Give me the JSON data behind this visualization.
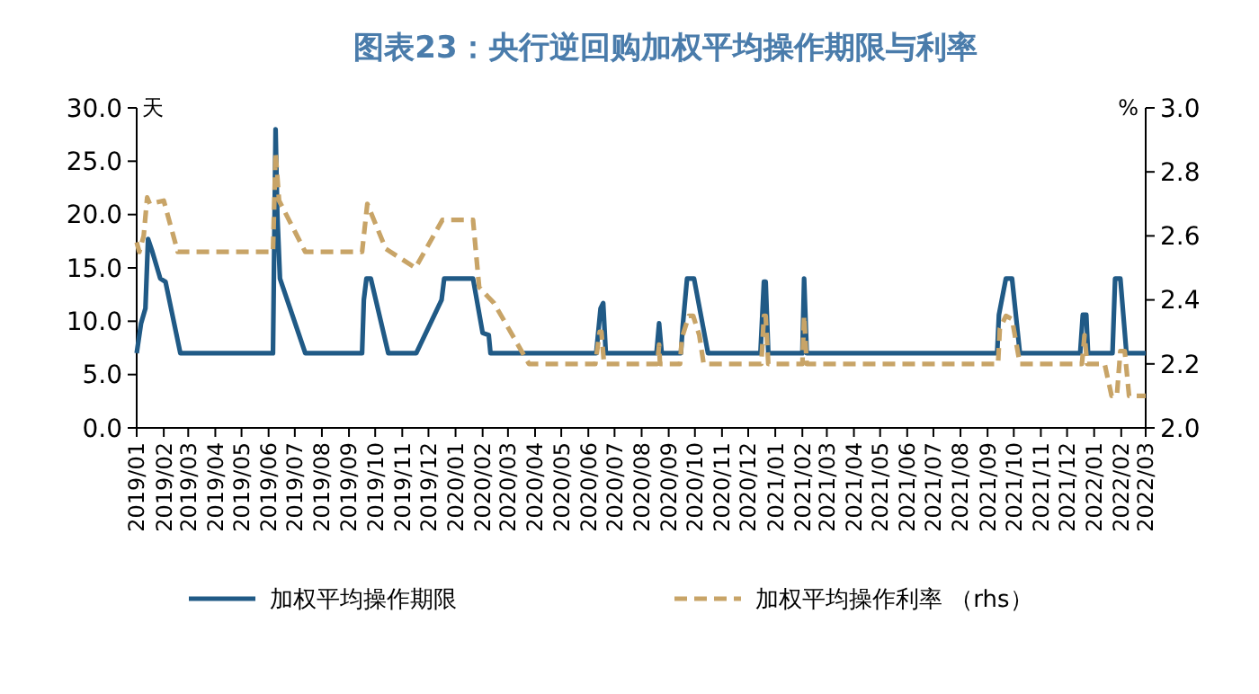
{
  "chart_data": {
    "type": "line",
    "title": "图表23：央行逆回购加权平均操作期限与利率",
    "ylabel": "天",
    "y2label": "%",
    "xlim": [
      "2019-01-01",
      "2022-03-01"
    ],
    "xticks": [
      {
        "value": "2019-01",
        "label": "2019/01"
      },
      {
        "value": "2019-02",
        "label": "2019/02"
      },
      {
        "value": "2019-03",
        "label": "2019/03"
      },
      {
        "value": "2019-04",
        "label": "2019/04"
      },
      {
        "value": "2019-05",
        "label": "2019/05"
      },
      {
        "value": "2019-06",
        "label": "2019/06"
      },
      {
        "value": "2019-07",
        "label": "2019/07"
      },
      {
        "value": "2019-08",
        "label": "2019/08"
      },
      {
        "value": "2019-09",
        "label": "2019/09"
      },
      {
        "value": "2019-10",
        "label": "2019/10"
      },
      {
        "value": "2019-11",
        "label": "2019/11"
      },
      {
        "value": "2019-12",
        "label": "2019/12"
      },
      {
        "value": "2020-01",
        "label": "2020/01"
      },
      {
        "value": "2020-02",
        "label": "2020/02"
      },
      {
        "value": "2020-03",
        "label": "2020/03"
      },
      {
        "value": "2020-04",
        "label": "2020/04"
      },
      {
        "value": "2020-05",
        "label": "2020/05"
      },
      {
        "value": "2020-06",
        "label": "2020/06"
      },
      {
        "value": "2020-07",
        "label": "2020/07"
      },
      {
        "value": "2020-08",
        "label": "2020/08"
      },
      {
        "value": "2020-09",
        "label": "2020/09"
      },
      {
        "value": "2020-10",
        "label": "2020/10"
      },
      {
        "value": "2020-11",
        "label": "2020/11"
      },
      {
        "value": "2020-12",
        "label": "2020/12"
      },
      {
        "value": "2021-01",
        "label": "2021/01"
      },
      {
        "value": "2021-02",
        "label": "2021/02"
      },
      {
        "value": "2021-03",
        "label": "2021/03"
      },
      {
        "value": "2021-04",
        "label": "2021/04"
      },
      {
        "value": "2021-05",
        "label": "2021/05"
      },
      {
        "value": "2021-06",
        "label": "2021/06"
      },
      {
        "value": "2021-07",
        "label": "2021/07"
      },
      {
        "value": "2021-08",
        "label": "2021/08"
      },
      {
        "value": "2021-09",
        "label": "2021/09"
      },
      {
        "value": "2021-10",
        "label": "2021/10"
      },
      {
        "value": "2021-11",
        "label": "2021/11"
      },
      {
        "value": "2021-12",
        "label": "2021/12"
      },
      {
        "value": "2022-01",
        "label": "2022/01"
      },
      {
        "value": "2022-02",
        "label": "2022/02"
      },
      {
        "value": "2022-03",
        "label": "2022/03"
      }
    ],
    "ylim": [
      0,
      30
    ],
    "yticks": [
      {
        "value": 0,
        "label": "0.0"
      },
      {
        "value": 5,
        "label": "5.0"
      },
      {
        "value": 10,
        "label": "10.0"
      },
      {
        "value": 15,
        "label": "15.0"
      },
      {
        "value": 20,
        "label": "20.0"
      },
      {
        "value": 25,
        "label": "25.0"
      },
      {
        "value": 30,
        "label": "30.0"
      }
    ],
    "y2lim": [
      2.0,
      3.0
    ],
    "y2ticks": [
      {
        "value": 2.0,
        "label": "2.0"
      },
      {
        "value": 2.2,
        "label": "2.2"
      },
      {
        "value": 2.4,
        "label": "2.4"
      },
      {
        "value": 2.6,
        "label": "2.6"
      },
      {
        "value": 2.8,
        "label": "2.8"
      },
      {
        "value": 3.0,
        "label": "3.0"
      }
    ],
    "grid": false,
    "legend": "bottom",
    "series": [
      {
        "name": "加权平均操作期限",
        "color": "#205a86",
        "line_style": "solid",
        "x": [
          "2019-01-01",
          "2019-01-06",
          "2019-01-11",
          "2019-01-14",
          "2019-01-19",
          "2019-01-28",
          "2019-02-03",
          "2019-02-20",
          "2019-06-06",
          "2019-06-09",
          "2019-06-11",
          "2019-06-14",
          "2019-07-13",
          "2019-09-16",
          "2019-09-18",
          "2019-09-21",
          "2019-09-26",
          "2019-10-16",
          "2019-11-17",
          "2019-12-16",
          "2019-12-19",
          "2020-01-21",
          "2020-02-01",
          "2020-02-08",
          "2020-02-10",
          "2020-06-10",
          "2020-06-15",
          "2020-06-18",
          "2020-06-21",
          "2020-08-18",
          "2020-08-21",
          "2020-08-24",
          "2020-09-15",
          "2020-09-17",
          "2020-09-22",
          "2020-09-30",
          "2020-10-16",
          "2020-12-15",
          "2020-12-19",
          "2020-12-21",
          "2020-12-24",
          "2021-02-01",
          "2021-02-03",
          "2021-02-06",
          "2021-09-12",
          "2021-09-14",
          "2021-09-22",
          "2021-09-29",
          "2021-10-08",
          "2021-12-16",
          "2021-12-19",
          "2021-12-23",
          "2021-12-25",
          "2022-01-22",
          "2022-01-25",
          "2022-01-31",
          "2022-02-07",
          "2022-03-01"
        ],
        "values": [
          7,
          9.8,
          11.2,
          17.7,
          16.5,
          14.0,
          13.7,
          7,
          7,
          28.0,
          20,
          14.0,
          7,
          7,
          12,
          14,
          14,
          7,
          7,
          12,
          14,
          14,
          8.9,
          8.7,
          7,
          7,
          11.2,
          11.7,
          7,
          7,
          9.8,
          7,
          7,
          9.5,
          14,
          14,
          7,
          7,
          13.7,
          13.7,
          7,
          7,
          14,
          7,
          7,
          10.6,
          14,
          14,
          7,
          7,
          10.6,
          10.6,
          7,
          7,
          14,
          14,
          7,
          7
        ]
      },
      {
        "name": "加权平均操作利率 （rhs）",
        "color": "#c8a467",
        "line_style": "dashed",
        "axis": "y2",
        "x": [
          "2019-01-01",
          "2019-01-04",
          "2019-01-09",
          "2019-01-13",
          "2019-01-16",
          "2019-02-01",
          "2019-02-17",
          "2019-06-06",
          "2019-06-09",
          "2019-06-13",
          "2019-07-13",
          "2019-09-16",
          "2019-09-22",
          "2019-10-13",
          "2019-11-16",
          "2019-12-17",
          "2020-01-21",
          "2020-01-28",
          "2020-02-07",
          "2020-02-14",
          "2020-03-25",
          "2020-06-09",
          "2020-06-14",
          "2020-06-16",
          "2020-06-19",
          "2020-08-19",
          "2020-08-21",
          "2020-08-22",
          "2020-09-14",
          "2020-09-16",
          "2020-09-24",
          "2020-09-29",
          "2020-10-06",
          "2020-10-11",
          "2020-12-16",
          "2020-12-19",
          "2020-12-21",
          "2020-12-24",
          "2021-02-01",
          "2021-02-03",
          "2021-02-06",
          "2021-09-13",
          "2021-09-15",
          "2021-09-22",
          "2021-09-29",
          "2021-10-08",
          "2021-12-18",
          "2021-12-21",
          "2021-12-24",
          "2022-01-13",
          "2022-01-21",
          "2022-01-27",
          "2022-01-31",
          "2022-02-05",
          "2022-02-10",
          "2022-03-01"
        ],
        "values": [
          2.58,
          2.55,
          2.6,
          2.72,
          2.7,
          2.71,
          2.55,
          2.55,
          2.86,
          2.71,
          2.55,
          2.55,
          2.7,
          2.56,
          2.5,
          2.65,
          2.65,
          2.44,
          2.41,
          2.39,
          2.2,
          2.2,
          2.3,
          2.3,
          2.2,
          2.2,
          2.26,
          2.2,
          2.2,
          2.28,
          2.35,
          2.35,
          2.29,
          2.2,
          2.2,
          2.35,
          2.35,
          2.2,
          2.2,
          2.35,
          2.2,
          2.2,
          2.31,
          2.35,
          2.34,
          2.2,
          2.2,
          2.29,
          2.2,
          2.2,
          2.1,
          2.1,
          2.24,
          2.24,
          2.1,
          2.1
        ]
      }
    ]
  }
}
